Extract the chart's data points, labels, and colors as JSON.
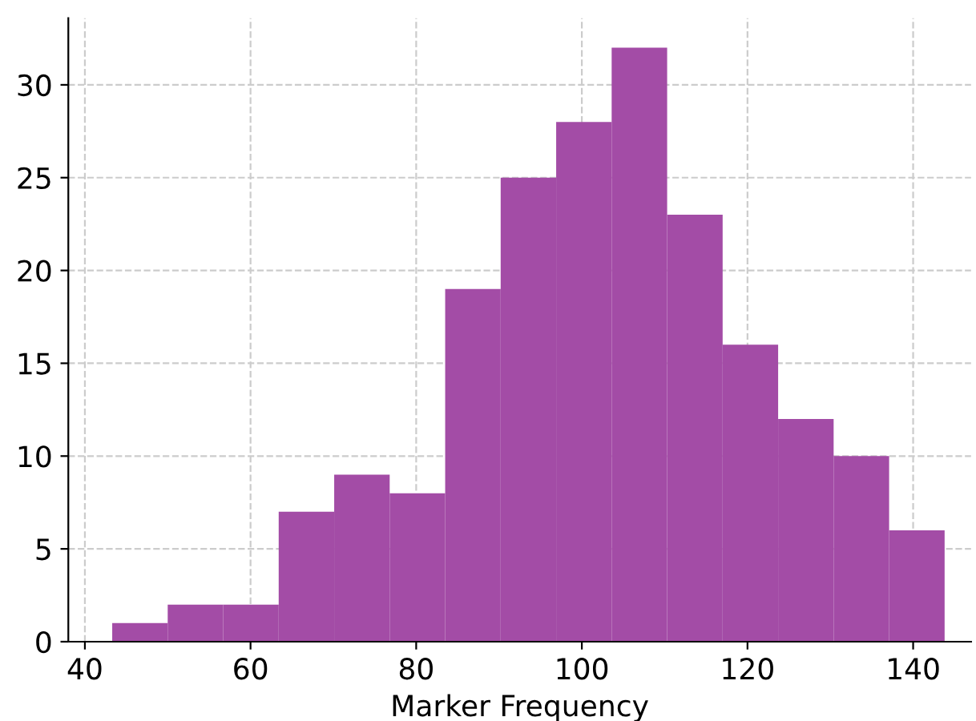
{
  "chart_data": {
    "type": "histogram",
    "xlabel": "Marker Frequency",
    "bins": [
      43.3,
      50.0,
      56.7,
      63.4,
      70.1,
      76.8,
      83.5,
      90.2,
      96.9,
      103.6,
      110.3,
      117.0,
      123.7,
      130.4,
      137.1,
      143.8
    ],
    "values": [
      1,
      2,
      2,
      7,
      9,
      8,
      19,
      25,
      28,
      32,
      23,
      16,
      12,
      10,
      6
    ],
    "color": "#a34ca6",
    "xlim": [
      38,
      147
    ],
    "ylim": [
      0,
      33.6
    ],
    "xticks": [
      40,
      60,
      80,
      100,
      120,
      140
    ],
    "yticks": [
      0,
      5,
      10,
      15,
      20,
      25,
      30
    ],
    "grid": true
  }
}
